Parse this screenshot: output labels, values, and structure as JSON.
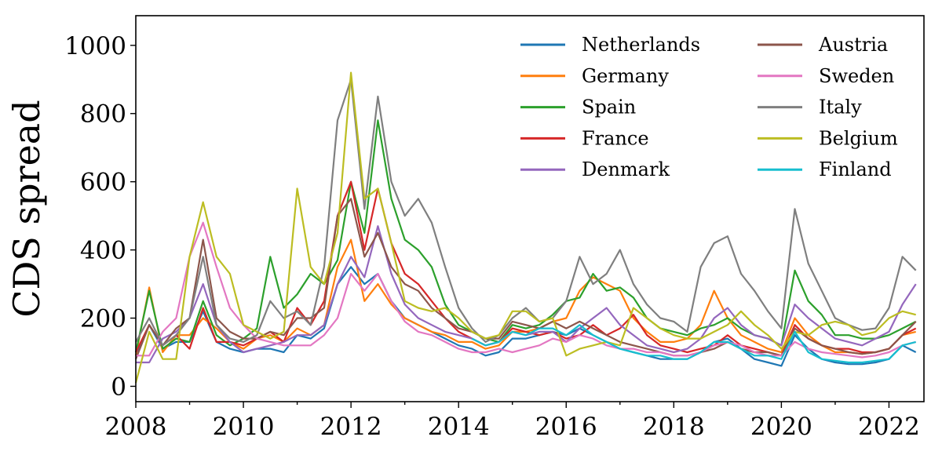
{
  "chart_data": {
    "type": "line",
    "title": "",
    "xlabel": "",
    "ylabel": "CDS spread",
    "xlim": [
      2008,
      2022.65
    ],
    "ylim": [
      -45,
      1087
    ],
    "xticks": [
      "2008",
      "2010",
      "2012",
      "2014",
      "2016",
      "2018",
      "2020",
      "2022"
    ],
    "xtick_values": [
      2008,
      2010,
      2012,
      2014,
      2016,
      2018,
      2020,
      2022
    ],
    "yticks": [
      "0",
      "200",
      "400",
      "600",
      "800",
      "1000"
    ],
    "ytick_values": [
      0,
      200,
      400,
      600,
      800,
      1000
    ],
    "legend_position": "top-right",
    "x_start": 2008,
    "x_step": 0.25,
    "series": [
      {
        "name": "Netherlands",
        "color": "#1f77b4",
        "values": [
          90,
          180,
          110,
          130,
          130,
          220,
          130,
          110,
          100,
          110,
          110,
          100,
          150,
          140,
          170,
          300,
          350,
          300,
          330,
          250,
          200,
          180,
          160,
          140,
          120,
          110,
          90,
          100,
          140,
          140,
          150,
          160,
          150,
          170,
          150,
          130,
          110,
          100,
          90,
          80,
          80,
          80,
          100,
          130,
          140,
          110,
          80,
          70,
          60,
          150,
          110,
          80,
          70,
          65,
          65,
          70,
          80,
          120,
          100
        ]
      },
      {
        "name": "Germany",
        "color": "#ff7f0e",
        "values": [
          90,
          290,
          100,
          150,
          150,
          200,
          170,
          130,
          110,
          140,
          150,
          130,
          170,
          150,
          180,
          350,
          430,
          250,
          300,
          240,
          200,
          180,
          160,
          150,
          130,
          130,
          110,
          120,
          160,
          160,
          170,
          190,
          200,
          280,
          320,
          300,
          280,
          200,
          160,
          130,
          130,
          140,
          180,
          280,
          200,
          150,
          130,
          110,
          100,
          200,
          150,
          120,
          100,
          100,
          95,
          100,
          110,
          150,
          160
        ]
      },
      {
        "name": "Spain",
        "color": "#2ca02c",
        "values": [
          100,
          280,
          110,
          140,
          130,
          250,
          150,
          120,
          140,
          170,
          380,
          230,
          270,
          330,
          300,
          370,
          600,
          450,
          780,
          550,
          430,
          400,
          350,
          240,
          180,
          160,
          140,
          130,
          180,
          170,
          180,
          210,
          250,
          260,
          330,
          280,
          290,
          260,
          200,
          170,
          160,
          150,
          170,
          180,
          200,
          170,
          150,
          140,
          120,
          340,
          250,
          210,
          150,
          150,
          140,
          140,
          150,
          170,
          190
        ]
      },
      {
        "name": "France",
        "color": "#d62728",
        "values": [
          100,
          180,
          120,
          150,
          110,
          230,
          130,
          130,
          120,
          140,
          160,
          130,
          230,
          180,
          250,
          500,
          600,
          400,
          580,
          420,
          330,
          300,
          250,
          200,
          160,
          140,
          120,
          130,
          170,
          160,
          150,
          160,
          140,
          150,
          180,
          150,
          170,
          210,
          150,
          120,
          110,
          100,
          110,
          120,
          150,
          120,
          110,
          100,
          90,
          180,
          140,
          120,
          110,
          110,
          100,
          100,
          110,
          150,
          170
        ]
      },
      {
        "name": "Denmark",
        "color": "#9467bd",
        "values": [
          70,
          70,
          140,
          160,
          200,
          300,
          180,
          130,
          100,
          110,
          120,
          130,
          150,
          150,
          180,
          300,
          380,
          320,
          470,
          330,
          240,
          200,
          180,
          160,
          150,
          140,
          120,
          130,
          160,
          150,
          160,
          160,
          130,
          170,
          200,
          230,
          180,
          150,
          120,
          110,
          100,
          110,
          140,
          200,
          230,
          180,
          150,
          140,
          120,
          240,
          200,
          170,
          140,
          130,
          120,
          140,
          160,
          240,
          300
        ]
      },
      {
        "name": "Austria",
        "color": "#8c564b",
        "values": [
          80,
          180,
          120,
          170,
          200,
          430,
          200,
          160,
          140,
          140,
          160,
          150,
          200,
          200,
          230,
          500,
          550,
          380,
          450,
          350,
          300,
          280,
          230,
          200,
          170,
          160,
          140,
          140,
          190,
          180,
          170,
          190,
          170,
          190,
          170,
          150,
          130,
          120,
          110,
          100,
          90,
          90,
          100,
          110,
          130,
          110,
          100,
          100,
          90,
          170,
          140,
          120,
          110,
          100,
          95,
          100,
          110,
          150,
          190
        ]
      },
      {
        "name": "Sweden",
        "color": "#e377c2",
        "values": [
          90,
          90,
          160,
          200,
          380,
          480,
          350,
          230,
          180,
          140,
          130,
          120,
          120,
          120,
          150,
          200,
          330,
          280,
          330,
          250,
          190,
          160,
          150,
          130,
          110,
          100,
          100,
          110,
          100,
          110,
          120,
          140,
          130,
          150,
          140,
          120,
          110,
          110,
          100,
          100,
          90,
          90,
          100,
          120,
          130,
          120,
          100,
          90,
          90,
          130,
          110,
          100,
          95,
          90,
          85,
          90,
          100,
          120,
          130
        ]
      },
      {
        "name": "Italy",
        "color": "#7f7f7f",
        "values": [
          130,
          200,
          120,
          150,
          200,
          380,
          180,
          140,
          130,
          150,
          250,
          200,
          220,
          180,
          350,
          780,
          900,
          520,
          850,
          600,
          500,
          550,
          480,
          350,
          230,
          170,
          130,
          150,
          200,
          230,
          190,
          200,
          250,
          380,
          300,
          330,
          400,
          300,
          240,
          200,
          190,
          160,
          350,
          420,
          440,
          330,
          280,
          220,
          170,
          520,
          360,
          280,
          200,
          180,
          165,
          170,
          230,
          380,
          340
        ]
      },
      {
        "name": "Belgium",
        "color": "#bcbd22",
        "values": [
          10,
          160,
          80,
          80,
          380,
          540,
          380,
          330,
          180,
          160,
          140,
          160,
          580,
          350,
          300,
          450,
          920,
          550,
          580,
          420,
          250,
          230,
          220,
          230,
          200,
          160,
          140,
          150,
          220,
          220,
          190,
          200,
          90,
          110,
          120,
          130,
          120,
          230,
          200,
          170,
          150,
          140,
          140,
          160,
          180,
          220,
          180,
          150,
          110,
          160,
          150,
          180,
          190,
          180,
          150,
          160,
          200,
          220,
          210
        ]
      },
      {
        "name": "Finland",
        "color": "#17becf",
        "values": [
          null,
          null,
          null,
          null,
          null,
          null,
          null,
          null,
          null,
          null,
          null,
          null,
          null,
          null,
          null,
          null,
          null,
          null,
          null,
          null,
          null,
          null,
          null,
          null,
          null,
          140,
          120,
          130,
          160,
          150,
          170,
          170,
          150,
          180,
          150,
          130,
          110,
          100,
          90,
          90,
          80,
          80,
          100,
          130,
          130,
          110,
          90,
          90,
          80,
          160,
          100,
          80,
          75,
          70,
          70,
          75,
          80,
          120,
          130
        ]
      }
    ]
  }
}
